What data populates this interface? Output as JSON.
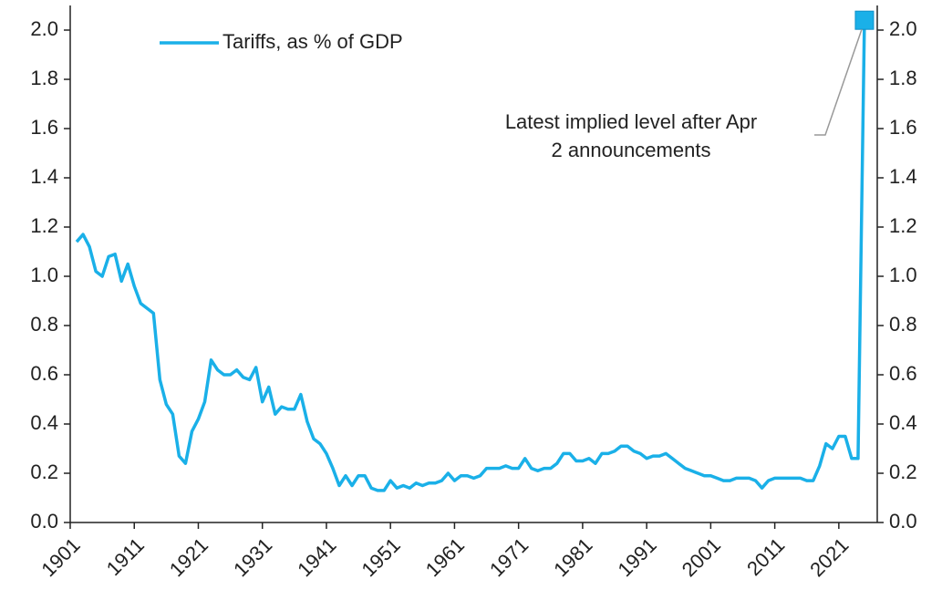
{
  "chart_data": {
    "type": "line",
    "series": [
      {
        "name": "Tariffs, as % of GDP",
        "color": "#1ab0e8",
        "x": [
          1902,
          1903,
          1904,
          1905,
          1906,
          1907,
          1908,
          1909,
          1910,
          1911,
          1912,
          1913,
          1914,
          1915,
          1916,
          1917,
          1918,
          1919,
          1920,
          1921,
          1922,
          1923,
          1924,
          1925,
          1926,
          1927,
          1928,
          1929,
          1930,
          1931,
          1932,
          1933,
          1934,
          1935,
          1936,
          1937,
          1938,
          1939,
          1940,
          1941,
          1942,
          1943,
          1944,
          1945,
          1946,
          1947,
          1948,
          1949,
          1950,
          1951,
          1952,
          1953,
          1954,
          1955,
          1956,
          1957,
          1958,
          1959,
          1960,
          1961,
          1962,
          1963,
          1964,
          1965,
          1966,
          1967,
          1968,
          1969,
          1970,
          1971,
          1972,
          1973,
          1974,
          1975,
          1976,
          1977,
          1978,
          1979,
          1980,
          1981,
          1982,
          1983,
          1984,
          1985,
          1986,
          1987,
          1988,
          1989,
          1990,
          1991,
          1992,
          1993,
          1994,
          1995,
          1996,
          1997,
          1998,
          1999,
          2000,
          2001,
          2002,
          2003,
          2004,
          2005,
          2006,
          2007,
          2008,
          2009,
          2010,
          2011,
          2012,
          2013,
          2014,
          2015,
          2016,
          2017,
          2018,
          2019,
          2020,
          2021,
          2022,
          2023,
          2024,
          2025
        ],
        "values": [
          1.14,
          1.17,
          1.12,
          1.02,
          1.0,
          1.08,
          1.09,
          0.98,
          1.05,
          0.96,
          0.89,
          0.87,
          0.85,
          0.58,
          0.48,
          0.44,
          0.27,
          0.24,
          0.37,
          0.42,
          0.49,
          0.66,
          0.62,
          0.6,
          0.6,
          0.62,
          0.59,
          0.58,
          0.63,
          0.49,
          0.55,
          0.44,
          0.47,
          0.46,
          0.46,
          0.52,
          0.41,
          0.34,
          0.32,
          0.28,
          0.22,
          0.15,
          0.19,
          0.15,
          0.19,
          0.19,
          0.14,
          0.13,
          0.13,
          0.17,
          0.14,
          0.15,
          0.14,
          0.16,
          0.15,
          0.16,
          0.16,
          0.17,
          0.2,
          0.17,
          0.19,
          0.19,
          0.18,
          0.19,
          0.22,
          0.22,
          0.22,
          0.23,
          0.22,
          0.22,
          0.26,
          0.22,
          0.21,
          0.22,
          0.22,
          0.24,
          0.28,
          0.28,
          0.25,
          0.25,
          0.26,
          0.24,
          0.28,
          0.28,
          0.29,
          0.31,
          0.31,
          0.29,
          0.28,
          0.26,
          0.27,
          0.27,
          0.28,
          0.26,
          0.24,
          0.22,
          0.21,
          0.2,
          0.19,
          0.19,
          0.18,
          0.17,
          0.17,
          0.18,
          0.18,
          0.18,
          0.17,
          0.14,
          0.17,
          0.18,
          0.18,
          0.18,
          0.18,
          0.18,
          0.17,
          0.17,
          0.23,
          0.32,
          0.3,
          0.35,
          0.35,
          0.26,
          0.26,
          2.04
        ]
      }
    ],
    "xlim": [
      1901,
      2027
    ],
    "xticks": [
      1901,
      1911,
      1921,
      1931,
      1941,
      1951,
      1961,
      1971,
      1981,
      1991,
      2001,
      2011,
      2021
    ],
    "ylim": [
      0,
      2.1
    ],
    "yticks": [
      {
        "value": 0,
        "label": "0.0"
      },
      0.2,
      0.4,
      0.6,
      0.8,
      {
        "value": 1,
        "label": "1.0"
      },
      1.2,
      1.4,
      1.6,
      1.8,
      {
        "value": 2,
        "label": "2.0"
      }
    ],
    "y2lim": [
      0,
      2.1
    ],
    "y2ticks": [
      {
        "value": 0,
        "label": "0.0"
      },
      0.2,
      0.4,
      0.6,
      0.8,
      {
        "value": 1,
        "label": "1.0"
      },
      1.2,
      1.4,
      1.6,
      1.8,
      {
        "value": 2,
        "label": "2.0"
      }
    ],
    "annotation": [
      "Latest implied level after Apr",
      "2 announcements"
    ],
    "legend": "upper left",
    "grid": false
  }
}
